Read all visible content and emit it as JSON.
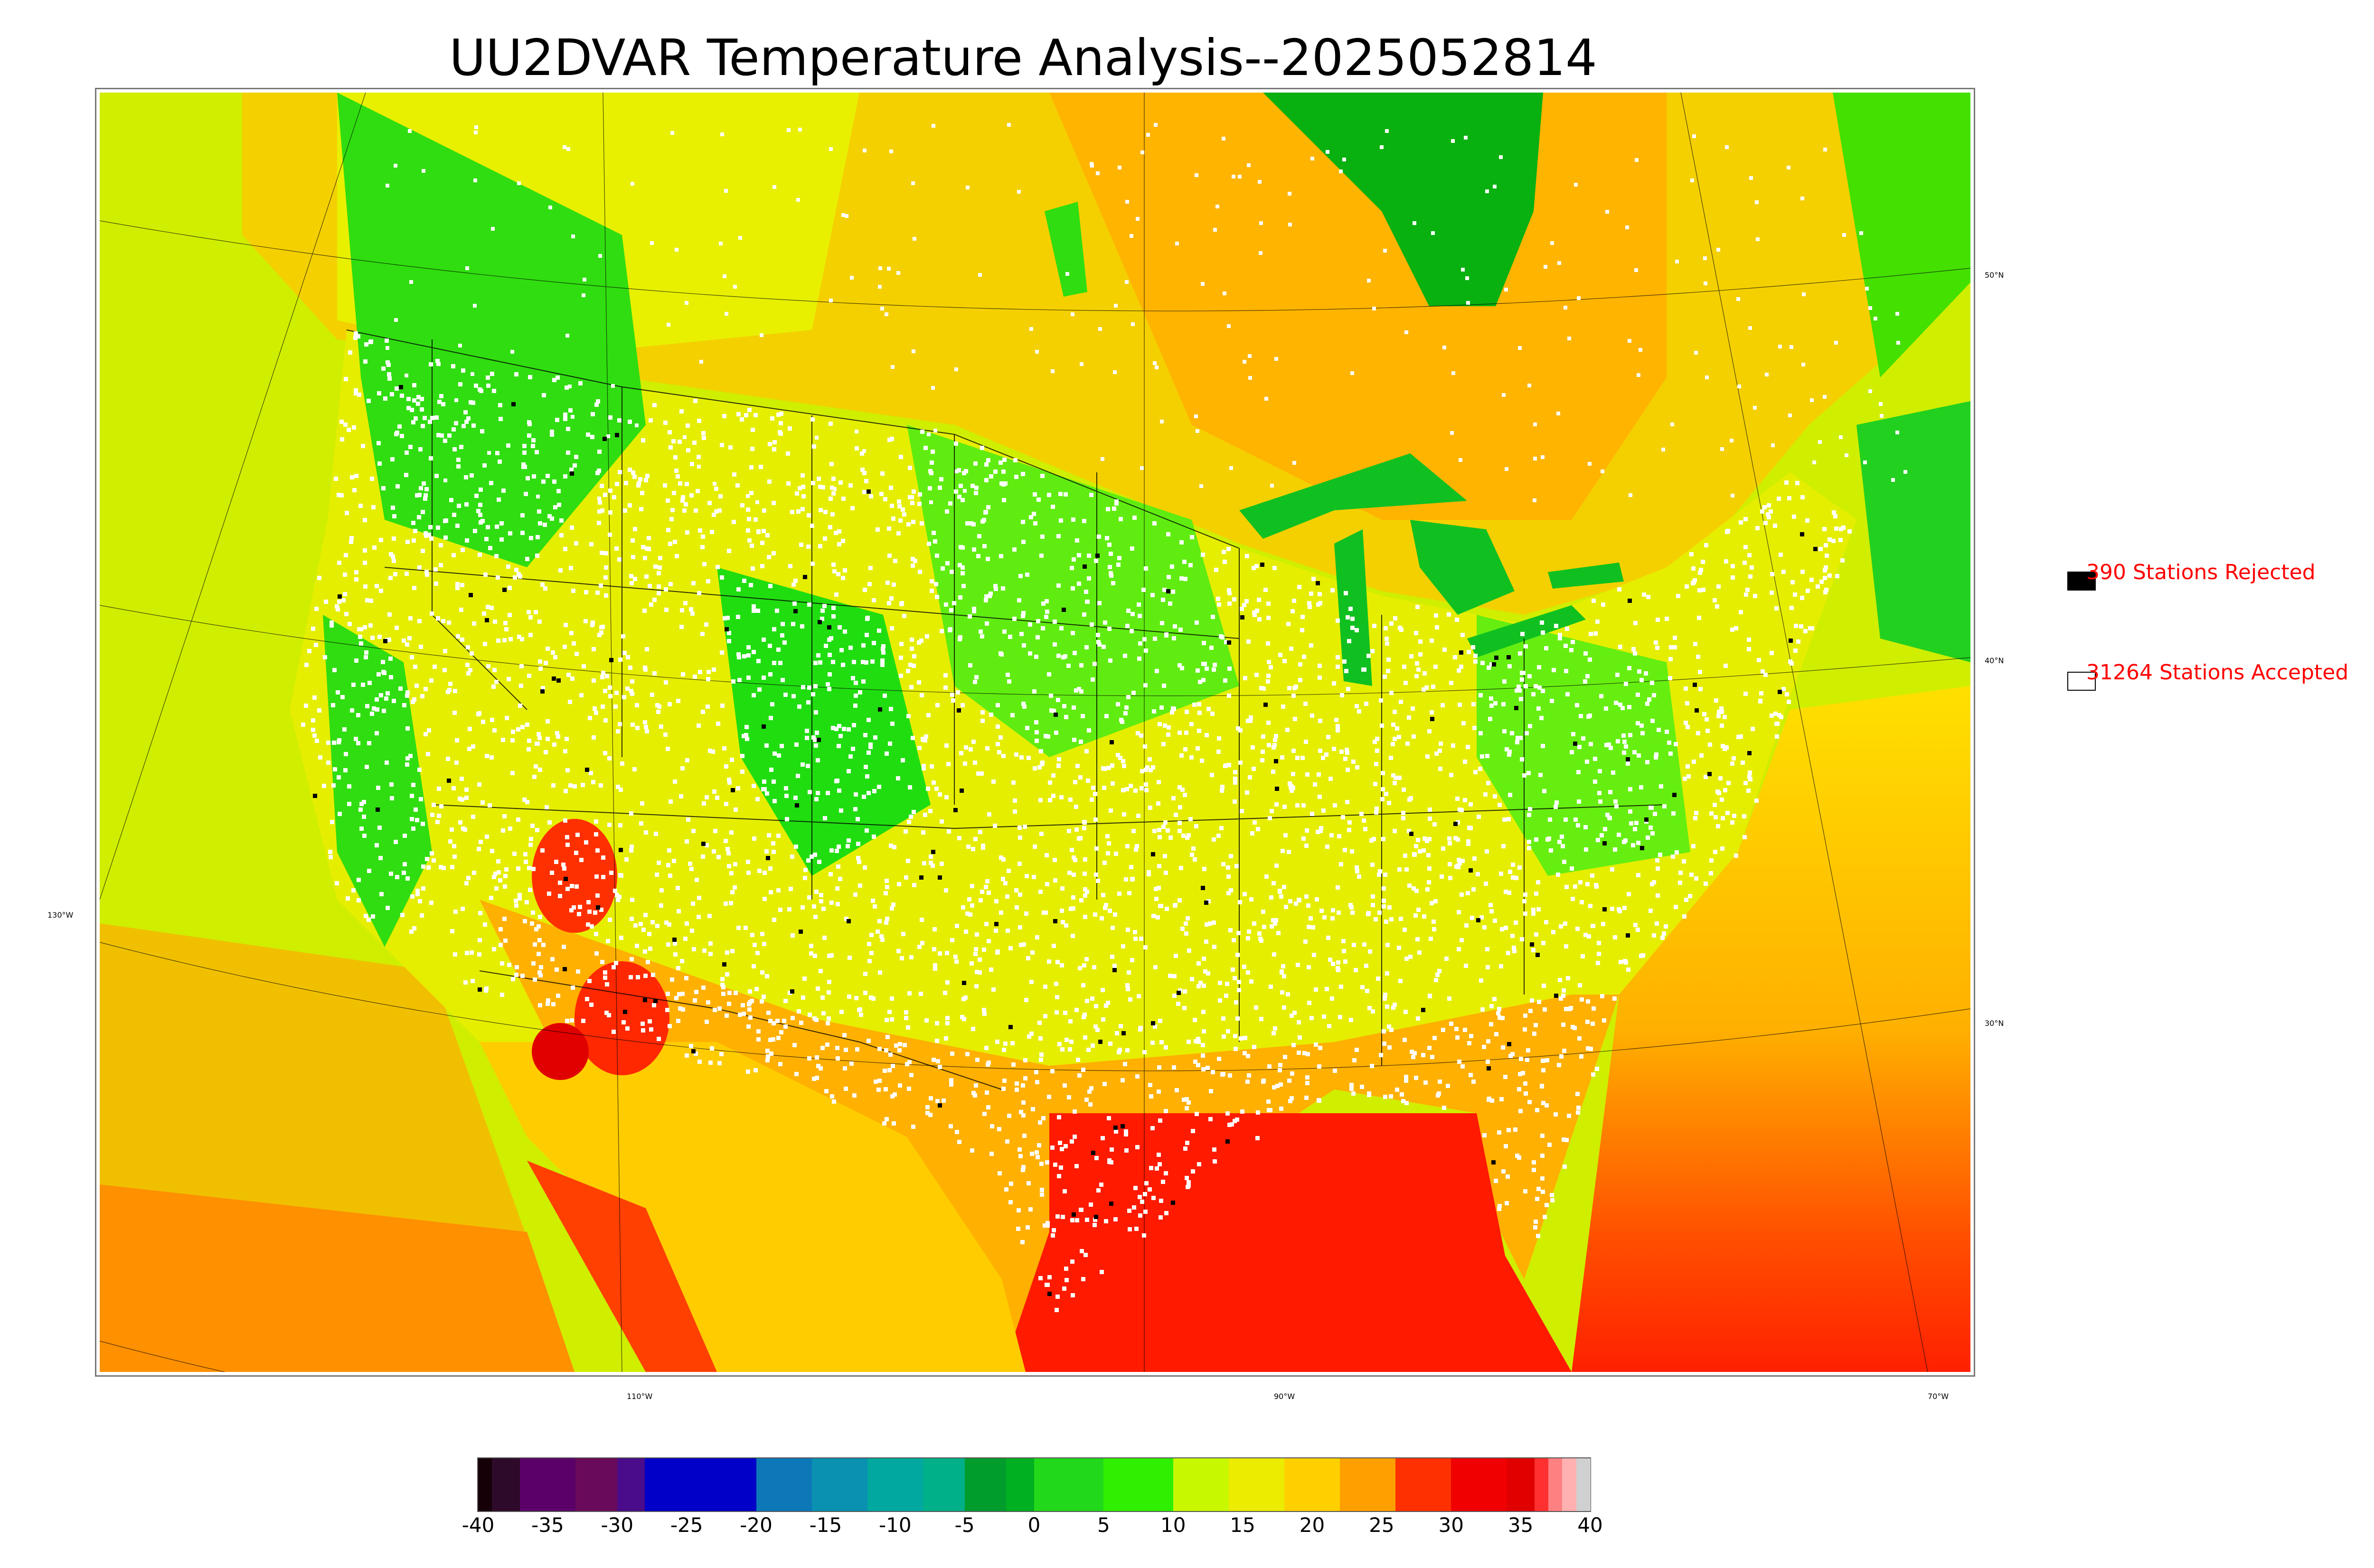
{
  "title": "UU2DVAR Temperature Analysis--2025052814",
  "grid_labels": {
    "lat": [
      "50°N",
      "40°N",
      "30°N"
    ],
    "lon_left": "130°W",
    "lon_bottom": [
      "110°W",
      "90°W",
      "70°W"
    ]
  },
  "legend": {
    "rejected": {
      "count": 390,
      "label": "390 Stations Rejected",
      "color": "#000000"
    },
    "accepted": {
      "count": 31264,
      "label": "31264 Stations Accepted",
      "color": "#ffffff"
    },
    "text_color": "#ff0000"
  },
  "colorbar": {
    "min": -40,
    "max": 40,
    "ticks": [
      "-40",
      "-35",
      "-30",
      "-25",
      "-20",
      "-15",
      "-10",
      "-5",
      "0",
      "5",
      "10",
      "15",
      "20",
      "25",
      "30",
      "35",
      "40"
    ],
    "stops": [
      {
        "from": -40,
        "to": -39,
        "color": "#150008"
      },
      {
        "from": -39,
        "to": -37,
        "color": "#2d0a2a"
      },
      {
        "from": -37,
        "to": -33,
        "color": "#5a0068"
      },
      {
        "from": -33,
        "to": -30,
        "color": "#6a0a5a"
      },
      {
        "from": -30,
        "to": -28,
        "color": "#4a0c8a"
      },
      {
        "from": -28,
        "to": -20,
        "color": "#0000c8"
      },
      {
        "from": -20,
        "to": -16,
        "color": "#0c78b8"
      },
      {
        "from": -16,
        "to": -12,
        "color": "#0a90b0"
      },
      {
        "from": -12,
        "to": -8,
        "color": "#00a8a0"
      },
      {
        "from": -8,
        "to": -5,
        "color": "#00b088"
      },
      {
        "from": -5,
        "to": -2,
        "color": "#009c2c"
      },
      {
        "from": -2,
        "to": 0,
        "color": "#00b020"
      },
      {
        "from": 0,
        "to": 5,
        "color": "#22d81a"
      },
      {
        "from": 5,
        "to": 10,
        "color": "#2ef000"
      },
      {
        "from": 10,
        "to": 14,
        "color": "#c8f800"
      },
      {
        "from": 14,
        "to": 18,
        "color": "#ecec00"
      },
      {
        "from": 18,
        "to": 22,
        "color": "#ffd000"
      },
      {
        "from": 22,
        "to": 26,
        "color": "#ffa000"
      },
      {
        "from": 26,
        "to": 30,
        "color": "#ff3000"
      },
      {
        "from": 30,
        "to": 34,
        "color": "#f00000"
      },
      {
        "from": 34,
        "to": 36,
        "color": "#e00000"
      },
      {
        "from": 36,
        "to": 37,
        "color": "#ff3030"
      },
      {
        "from": 37,
        "to": 38,
        "color": "#ff8080"
      },
      {
        "from": 38,
        "to": 39,
        "color": "#ffb0b0"
      },
      {
        "from": 39,
        "to": 40,
        "color": "#d0d0d0"
      }
    ]
  },
  "colors": {
    "ocean_west": "#d8f000",
    "ocean_gulf": "#ff2000",
    "land_cool": "#22dd10",
    "land_mild": "#e8f000",
    "land_warm": "#ffa800",
    "land_hot": "#ff2000",
    "station_accepted": "#ffffff",
    "station_rejected": "#000000",
    "border": "#000000"
  }
}
